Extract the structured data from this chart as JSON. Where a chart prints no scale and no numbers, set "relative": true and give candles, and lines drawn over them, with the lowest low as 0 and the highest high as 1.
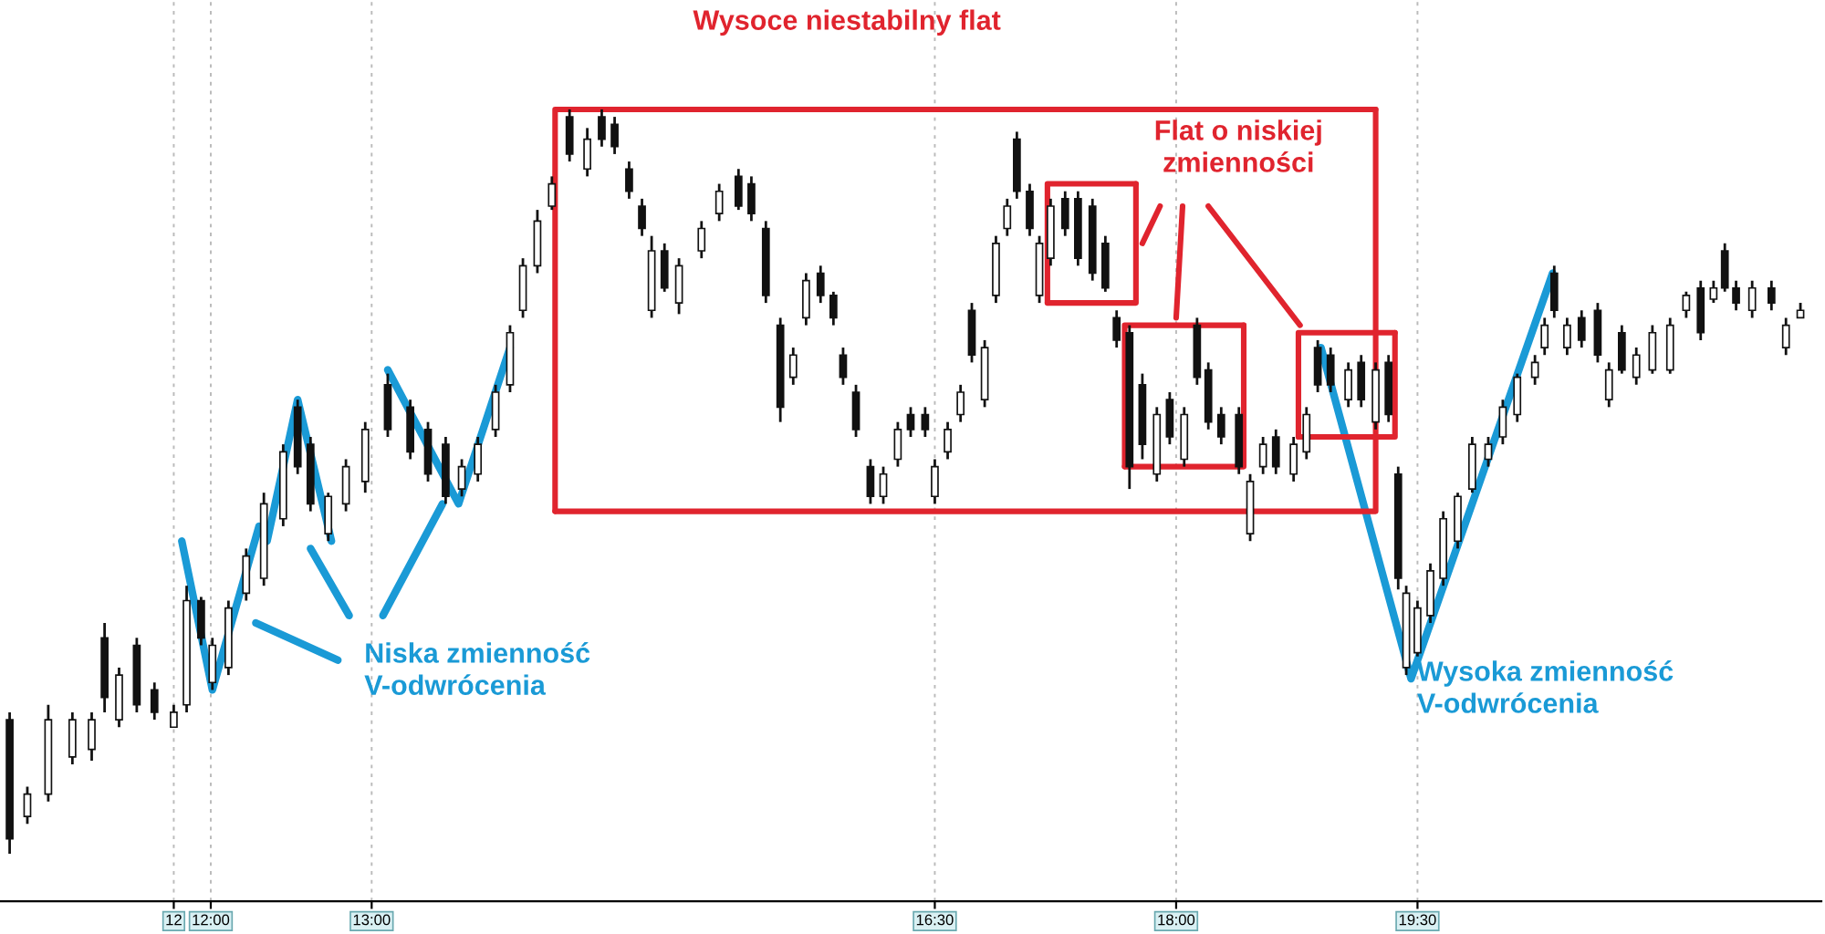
{
  "chart_data": {
    "type": "candlestick",
    "relative": true,
    "title": "Wysoce niestabilny flat",
    "x": [
      10.75,
      10.86,
      10.99,
      11.14,
      11.26,
      11.34,
      11.43,
      11.54,
      11.65,
      11.77,
      11.85,
      11.94,
      12.01,
      12.11,
      12.22,
      12.33,
      12.45,
      12.54,
      12.62,
      12.73,
      12.84,
      12.96,
      13.1,
      13.24,
      13.35,
      13.46,
      13.56,
      13.66,
      13.77,
      13.86,
      13.94,
      14.03,
      14.12,
      14.23,
      14.34,
      14.43,
      14.51,
      14.6,
      14.68,
      14.74,
      14.82,
      14.91,
      15.05,
      15.16,
      15.28,
      15.36,
      15.45,
      15.54,
      15.62,
      15.7,
      15.79,
      15.87,
      15.93,
      16.01,
      16.1,
      16.18,
      16.27,
      16.35,
      16.44,
      16.5,
      16.58,
      16.66,
      16.73,
      16.81,
      16.88,
      16.95,
      17.01,
      17.09,
      17.15,
      17.22,
      17.31,
      17.39,
      17.48,
      17.56,
      17.63,
      17.71,
      17.79,
      17.88,
      17.96,
      18.05,
      18.13,
      18.2,
      18.28,
      18.39,
      18.46,
      18.54,
      18.62,
      18.73,
      18.81,
      18.88,
      18.96,
      19.07,
      19.15,
      19.24,
      19.32,
      19.38,
      19.43,
      19.5,
      19.58,
      19.66,
      19.75,
      19.84,
      19.94,
      20.03,
      20.12,
      20.23,
      20.29,
      20.35,
      20.43,
      20.52,
      20.62,
      20.69,
      20.77,
      20.86,
      20.96,
      21.07,
      21.17,
      21.26,
      21.34,
      21.41,
      21.48,
      21.58,
      21.7,
      21.79,
      21.88
    ],
    "ohlc": [
      [
        0.18,
        0.19,
        0.0,
        0.02
      ],
      [
        0.05,
        0.09,
        0.04,
        0.08
      ],
      [
        0.08,
        0.2,
        0.07,
        0.18
      ],
      [
        0.13,
        0.19,
        0.12,
        0.18
      ],
      [
        0.14,
        0.19,
        0.125,
        0.18
      ],
      [
        0.29,
        0.31,
        0.19,
        0.21
      ],
      [
        0.18,
        0.25,
        0.17,
        0.24
      ],
      [
        0.28,
        0.29,
        0.19,
        0.2
      ],
      [
        0.22,
        0.23,
        0.18,
        0.19
      ],
      [
        0.17,
        0.2,
        0.17,
        0.19
      ],
      [
        0.2,
        0.36,
        0.19,
        0.34
      ],
      [
        0.34,
        0.345,
        0.28,
        0.29
      ],
      [
        0.23,
        0.29,
        0.22,
        0.28
      ],
      [
        0.25,
        0.34,
        0.24,
        0.33
      ],
      [
        0.35,
        0.41,
        0.34,
        0.4
      ],
      [
        0.37,
        0.485,
        0.36,
        0.47
      ],
      [
        0.45,
        0.55,
        0.44,
        0.54
      ],
      [
        0.6,
        0.61,
        0.51,
        0.52
      ],
      [
        0.55,
        0.56,
        0.46,
        0.47
      ],
      [
        0.43,
        0.485,
        0.42,
        0.48
      ],
      [
        0.47,
        0.53,
        0.46,
        0.52
      ],
      [
        0.5,
        0.58,
        0.485,
        0.57
      ],
      [
        0.63,
        0.645,
        0.56,
        0.57
      ],
      [
        0.6,
        0.61,
        0.53,
        0.54
      ],
      [
        0.57,
        0.58,
        0.5,
        0.51
      ],
      [
        0.55,
        0.56,
        0.47,
        0.48
      ],
      [
        0.49,
        0.53,
        0.48,
        0.52
      ],
      [
        0.51,
        0.56,
        0.5,
        0.55
      ],
      [
        0.57,
        0.63,
        0.56,
        0.62
      ],
      [
        0.63,
        0.71,
        0.62,
        0.7
      ],
      [
        0.73,
        0.8,
        0.72,
        0.79
      ],
      [
        0.79,
        0.865,
        0.78,
        0.85
      ],
      [
        0.87,
        0.91,
        0.865,
        0.9
      ],
      [
        0.99,
        1.0,
        0.93,
        0.94
      ],
      [
        0.92,
        0.975,
        0.91,
        0.96
      ],
      [
        0.99,
        1.0,
        0.95,
        0.96
      ],
      [
        0.98,
        0.99,
        0.94,
        0.95
      ],
      [
        0.92,
        0.93,
        0.88,
        0.89
      ],
      [
        0.87,
        0.88,
        0.83,
        0.84
      ],
      [
        0.73,
        0.83,
        0.72,
        0.81
      ],
      [
        0.81,
        0.82,
        0.755,
        0.76
      ],
      [
        0.74,
        0.8,
        0.725,
        0.79
      ],
      [
        0.81,
        0.85,
        0.8,
        0.84
      ],
      [
        0.86,
        0.9,
        0.85,
        0.89
      ],
      [
        0.91,
        0.92,
        0.865,
        0.87
      ],
      [
        0.9,
        0.91,
        0.85,
        0.86
      ],
      [
        0.84,
        0.85,
        0.74,
        0.75
      ],
      [
        0.71,
        0.72,
        0.58,
        0.6
      ],
      [
        0.64,
        0.68,
        0.63,
        0.67
      ],
      [
        0.72,
        0.78,
        0.71,
        0.77
      ],
      [
        0.78,
        0.79,
        0.74,
        0.75
      ],
      [
        0.75,
        0.755,
        0.71,
        0.72
      ],
      [
        0.67,
        0.68,
        0.63,
        0.64
      ],
      [
        0.62,
        0.63,
        0.56,
        0.57
      ],
      [
        0.52,
        0.53,
        0.47,
        0.48
      ],
      [
        0.48,
        0.52,
        0.47,
        0.51
      ],
      [
        0.53,
        0.58,
        0.52,
        0.57
      ],
      [
        0.59,
        0.6,
        0.56,
        0.57
      ],
      [
        0.59,
        0.6,
        0.56,
        0.57
      ],
      [
        0.48,
        0.53,
        0.47,
        0.52
      ],
      [
        0.54,
        0.58,
        0.53,
        0.57
      ],
      [
        0.59,
        0.63,
        0.58,
        0.62
      ],
      [
        0.73,
        0.74,
        0.66,
        0.67
      ],
      [
        0.61,
        0.69,
        0.6,
        0.68
      ],
      [
        0.75,
        0.83,
        0.74,
        0.82
      ],
      [
        0.84,
        0.88,
        0.83,
        0.87
      ],
      [
        0.96,
        0.97,
        0.88,
        0.89
      ],
      [
        0.89,
        0.9,
        0.83,
        0.84
      ],
      [
        0.75,
        0.83,
        0.74,
        0.82
      ],
      [
        0.8,
        0.88,
        0.79,
        0.87
      ],
      [
        0.88,
        0.89,
        0.83,
        0.84
      ],
      [
        0.88,
        0.89,
        0.79,
        0.8
      ],
      [
        0.87,
        0.88,
        0.77,
        0.78
      ],
      [
        0.82,
        0.83,
        0.755,
        0.76
      ],
      [
        0.72,
        0.73,
        0.68,
        0.69
      ],
      [
        0.7,
        0.71,
        0.49,
        0.52
      ],
      [
        0.63,
        0.645,
        0.53,
        0.55
      ],
      [
        0.51,
        0.6,
        0.5,
        0.59
      ],
      [
        0.61,
        0.62,
        0.55,
        0.56
      ],
      [
        0.53,
        0.6,
        0.52,
        0.59
      ],
      [
        0.71,
        0.72,
        0.63,
        0.64
      ],
      [
        0.65,
        0.66,
        0.57,
        0.58
      ],
      [
        0.59,
        0.6,
        0.55,
        0.56
      ],
      [
        0.59,
        0.6,
        0.51,
        0.52
      ],
      [
        0.43,
        0.51,
        0.42,
        0.5
      ],
      [
        0.52,
        0.56,
        0.51,
        0.55
      ],
      [
        0.56,
        0.57,
        0.51,
        0.52
      ],
      [
        0.51,
        0.56,
        0.5,
        0.55
      ],
      [
        0.54,
        0.6,
        0.53,
        0.59
      ],
      [
        0.68,
        0.69,
        0.62,
        0.63
      ],
      [
        0.67,
        0.68,
        0.62,
        0.63
      ],
      [
        0.61,
        0.66,
        0.6,
        0.65
      ],
      [
        0.66,
        0.67,
        0.6,
        0.61
      ],
      [
        0.58,
        0.66,
        0.57,
        0.65
      ],
      [
        0.66,
        0.67,
        0.58,
        0.59
      ],
      [
        0.51,
        0.52,
        0.355,
        0.37
      ],
      [
        0.25,
        0.36,
        0.24,
        0.35
      ],
      [
        0.27,
        0.34,
        0.265,
        0.33
      ],
      [
        0.32,
        0.39,
        0.31,
        0.38
      ],
      [
        0.37,
        0.46,
        0.36,
        0.45
      ],
      [
        0.42,
        0.485,
        0.41,
        0.48
      ],
      [
        0.49,
        0.56,
        0.485,
        0.55
      ],
      [
        0.53,
        0.56,
        0.52,
        0.55
      ],
      [
        0.56,
        0.61,
        0.55,
        0.6
      ],
      [
        0.59,
        0.645,
        0.58,
        0.64
      ],
      [
        0.64,
        0.67,
        0.63,
        0.66
      ],
      [
        0.68,
        0.72,
        0.67,
        0.71
      ],
      [
        0.78,
        0.79,
        0.72,
        0.73
      ],
      [
        0.68,
        0.72,
        0.67,
        0.71
      ],
      [
        0.72,
        0.73,
        0.68,
        0.69
      ],
      [
        0.73,
        0.74,
        0.66,
        0.67
      ],
      [
        0.61,
        0.66,
        0.6,
        0.65
      ],
      [
        0.7,
        0.71,
        0.645,
        0.65
      ],
      [
        0.64,
        0.68,
        0.63,
        0.67
      ],
      [
        0.65,
        0.71,
        0.645,
        0.7
      ],
      [
        0.65,
        0.72,
        0.645,
        0.71
      ],
      [
        0.73,
        0.755,
        0.72,
        0.75
      ],
      [
        0.76,
        0.77,
        0.69,
        0.7
      ],
      [
        0.745,
        0.77,
        0.74,
        0.76
      ],
      [
        0.81,
        0.82,
        0.755,
        0.76
      ],
      [
        0.76,
        0.77,
        0.73,
        0.74
      ],
      [
        0.73,
        0.77,
        0.72,
        0.76
      ],
      [
        0.76,
        0.77,
        0.73,
        0.74
      ],
      [
        0.68,
        0.72,
        0.67,
        0.71
      ],
      [
        0.72,
        0.74,
        0.72,
        0.73
      ]
    ],
    "series": [
      {
        "type": "line",
        "color": "#1a9ad6",
        "x": [
          11.82,
          12.01,
          12.3
        ],
        "values": [
          0.42,
          0.22,
          0.44
        ]
      },
      {
        "type": "line",
        "color": "#1a9ad6",
        "x": [
          12.35,
          12.54,
          12.75
        ],
        "values": [
          0.42,
          0.61,
          0.42
        ]
      },
      {
        "type": "line",
        "color": "#1a9ad6",
        "x": [
          13.1,
          13.54,
          13.86
        ],
        "values": [
          0.65,
          0.47,
          0.68
        ]
      },
      {
        "type": "line",
        "color": "#1a9ad6",
        "x": [
          12.28,
          12.79
        ],
        "values": [
          0.31,
          0.26
        ]
      },
      {
        "type": "line",
        "color": "#1a9ad6",
        "x": [
          12.62,
          12.86
        ],
        "values": [
          0.41,
          0.32
        ]
      },
      {
        "type": "line",
        "color": "#1a9ad6",
        "x": [
          13.44,
          13.07
        ],
        "values": [
          0.47,
          0.32
        ]
      },
      {
        "type": "line",
        "color": "#1a9ad6",
        "x": [
          18.9,
          19.46,
          20.34
        ],
        "values": [
          0.68,
          0.235,
          0.78
        ]
      },
      {
        "type": "line",
        "color": "#e0242e",
        "x": [
          14.14,
          14.14,
          19.24
        ],
        "values": [
          0.46,
          1.0,
          1.0
        ]
      },
      {
        "type": "line",
        "color": "#e0242e",
        "x": [
          14.14,
          19.24,
          19.24
        ],
        "values": [
          0.46,
          0.46,
          1.0
        ]
      },
      {
        "type": "line",
        "color": "#e0242e",
        "x": [
          17.2,
          17.2,
          17.75
        ],
        "values": [
          0.74,
          0.9,
          0.9
        ]
      },
      {
        "type": "line",
        "color": "#e0242e",
        "x": [
          17.2,
          17.75,
          17.75
        ],
        "values": [
          0.74,
          0.74,
          0.9
        ]
      },
      {
        "type": "line",
        "color": "#e0242e",
        "x": [
          17.68,
          17.68,
          18.42
        ],
        "values": [
          0.52,
          0.71,
          0.71
        ]
      },
      {
        "type": "line",
        "color": "#e0242e",
        "x": [
          17.68,
          18.42,
          18.42
        ],
        "values": [
          0.52,
          0.52,
          0.71
        ]
      },
      {
        "type": "line",
        "color": "#e0242e",
        "x": [
          18.76,
          18.76,
          19.36
        ],
        "values": [
          0.56,
          0.7,
          0.7
        ]
      },
      {
        "type": "line",
        "color": "#e0242e",
        "x": [
          18.76,
          19.36,
          19.36
        ],
        "values": [
          0.56,
          0.56,
          0.7
        ]
      },
      {
        "type": "line",
        "color": "#e0242e",
        "x": [
          17.79,
          17.9
        ],
        "values": [
          0.82,
          0.87
        ]
      },
      {
        "type": "line",
        "color": "#e0242e",
        "x": [
          18.0,
          18.04
        ],
        "values": [
          0.72,
          0.87
        ]
      },
      {
        "type": "line",
        "color": "#e0242e",
        "x": [
          18.2,
          18.77
        ],
        "values": [
          0.87,
          0.71
        ]
      }
    ],
    "annotations": [
      "Niska zmienność\nV-odwrócenia",
      "Wysoka zmienność\nV-odwrócenia",
      "Flat o niskiej\nzmienności"
    ],
    "xlim": [
      10.69,
      22.01
    ],
    "xticks": [
      {
        "value": 11.77,
        "label": "12"
      },
      {
        "value": 12.0,
        "label": "12:00"
      },
      {
        "value": 13.0,
        "label": "13:00"
      },
      {
        "value": 16.5,
        "label": "16:30"
      },
      {
        "value": 18.0,
        "label": "18:00"
      },
      {
        "value": 19.5,
        "label": "19:30"
      }
    ],
    "grid": "x"
  }
}
